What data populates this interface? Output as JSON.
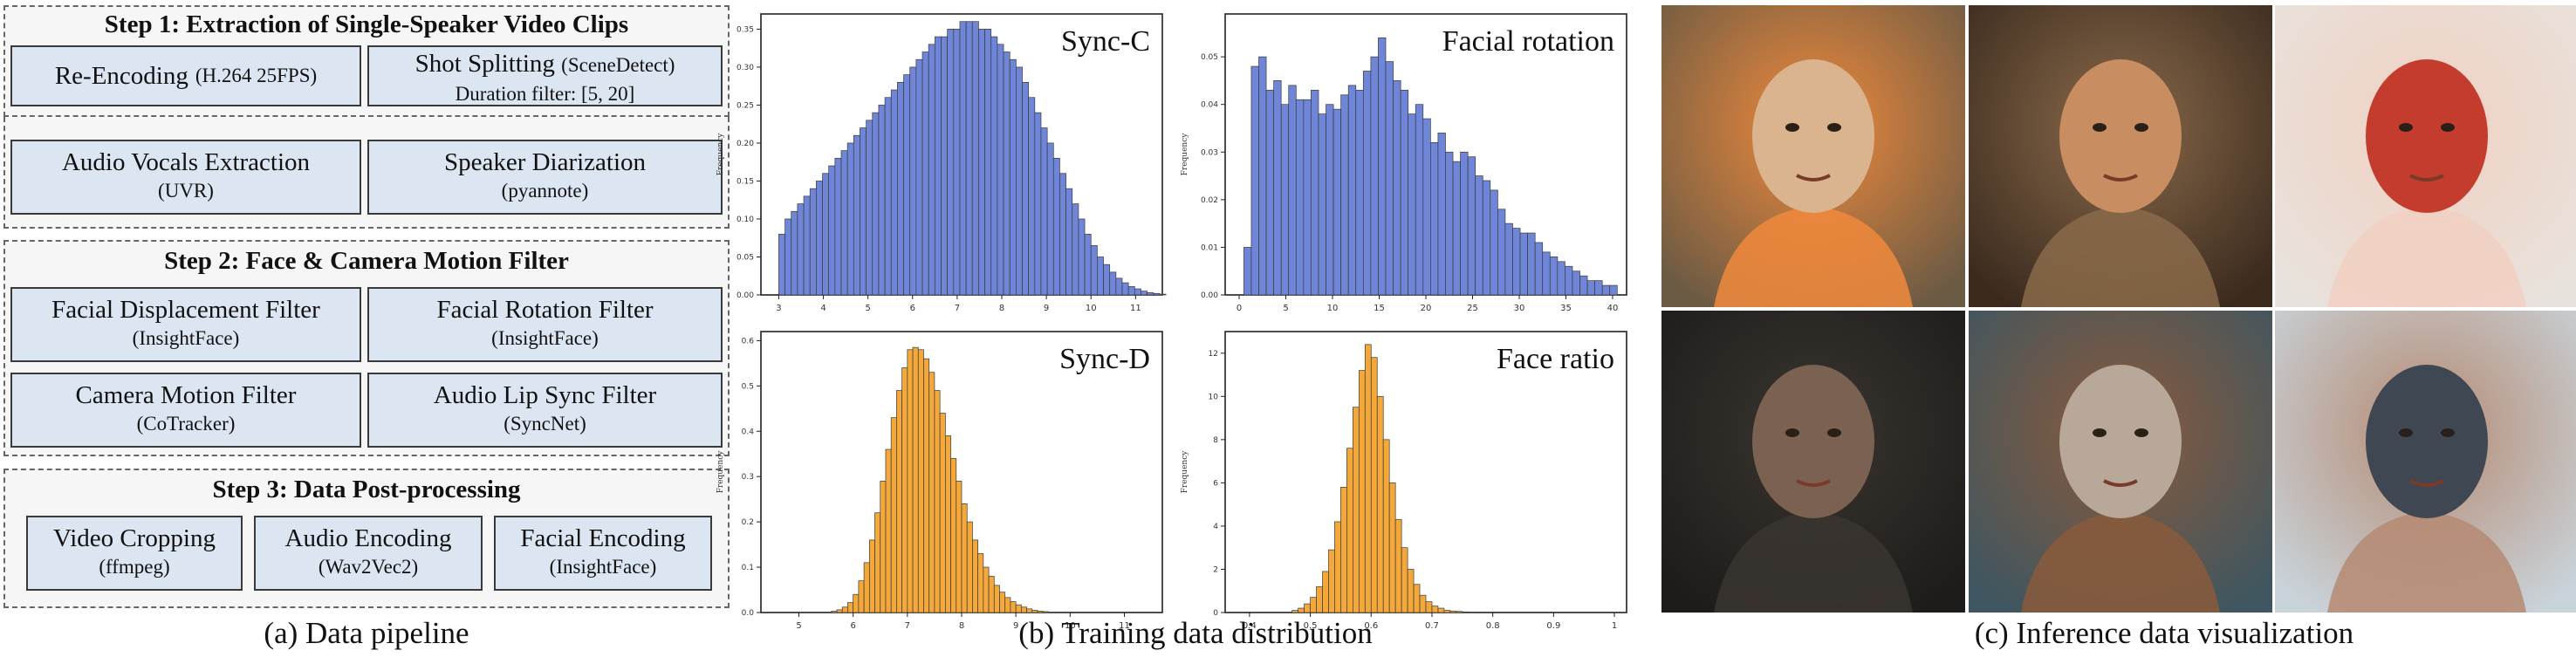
{
  "pipeline": {
    "step1": {
      "title": "Step 1: Extraction of Single-Speaker Video Clips",
      "boxes": [
        {
          "main": "Re-Encoding",
          "sub": "(H.264 25FPS)"
        },
        {
          "main": "Shot Splitting",
          "sub": "(SceneDetect)",
          "extra": "Duration filter: [5, 20]"
        },
        {
          "main": "Audio Vocals Extraction",
          "sub": "(UVR)"
        },
        {
          "main": "Speaker Diarization",
          "sub": "(pyannote)"
        }
      ]
    },
    "step2": {
      "title": "Step 2: Face & Camera Motion Filter",
      "boxes": [
        {
          "main": "Facial Displacement Filter",
          "sub": "(InsightFace)"
        },
        {
          "main": "Facial Rotation Filter",
          "sub": "(InsightFace)"
        },
        {
          "main": "Camera Motion Filter",
          "sub": "(CoTracker)"
        },
        {
          "main": "Audio Lip Sync Filter",
          "sub": "(SyncNet)"
        }
      ]
    },
    "step3": {
      "title": "Step 3: Data Post-processing",
      "boxes": [
        {
          "main": "Video Cropping",
          "sub": "(ffmpeg)"
        },
        {
          "main": "Audio Encoding",
          "sub": "(Wav2Vec2)"
        },
        {
          "main": "Facial Encoding",
          "sub": "(InsightFace)"
        }
      ]
    }
  },
  "captions": {
    "a": "(a) Data pipeline",
    "b": "(b) Training data distribution",
    "c": "(c) Inference data visualization"
  },
  "colors": {
    "blue": "#6f86d8",
    "orange": "#f4a83a",
    "box_fill": "#dbe6f2"
  },
  "photos": [
    {
      "name": "toddler-by-campfire-photo",
      "palette": [
        "#6b5a44",
        "#d9b48f",
        "#f08a3c"
      ]
    },
    {
      "name": "woman-with-parrot-photo",
      "palette": [
        "#3a2a1e",
        "#c98d62",
        "#8a6a4a"
      ]
    },
    {
      "name": "bride-with-headdress-photo",
      "palette": [
        "#e8e2dc",
        "#c33c2e",
        "#f1d0c2"
      ]
    },
    {
      "name": "dark-haired-woman-photo",
      "palette": [
        "#1d1c1a",
        "#7a6152",
        "#3a3530"
      ]
    },
    {
      "name": "old-sailor-in-storm-photo",
      "palette": [
        "#3f5660",
        "#b8a89a",
        "#8a5a3c"
      ]
    },
    {
      "name": "man-in-beanie-photo",
      "palette": [
        "#c9d3da",
        "#3f4852",
        "#b58a72"
      ]
    }
  ],
  "chart_data": [
    {
      "type": "bar",
      "title": "Sync-C",
      "ylabel": "Frequency",
      "color": "#6f86d8",
      "xlim": [
        2.6,
        11.6
      ],
      "ylim": [
        0,
        0.37
      ],
      "xticks": [
        3,
        4,
        5,
        6,
        7,
        8,
        9,
        10,
        11
      ],
      "yticks": [
        0.0,
        0.05,
        0.1,
        0.15,
        0.2,
        0.25,
        0.3,
        0.35
      ],
      "ytick_labels": [
        "0.00",
        "0.05",
        "0.10",
        "0.15",
        "0.20",
        "0.25",
        "0.30",
        "0.35"
      ],
      "bin_width": 0.14,
      "bin_start": 3.0,
      "values": [
        0.08,
        0.1,
        0.11,
        0.12,
        0.13,
        0.14,
        0.15,
        0.16,
        0.17,
        0.18,
        0.19,
        0.2,
        0.21,
        0.22,
        0.23,
        0.24,
        0.25,
        0.26,
        0.27,
        0.28,
        0.29,
        0.3,
        0.31,
        0.32,
        0.33,
        0.34,
        0.34,
        0.35,
        0.35,
        0.36,
        0.36,
        0.36,
        0.35,
        0.35,
        0.34,
        0.33,
        0.32,
        0.31,
        0.3,
        0.28,
        0.26,
        0.24,
        0.22,
        0.2,
        0.18,
        0.16,
        0.14,
        0.12,
        0.1,
        0.08,
        0.065,
        0.05,
        0.04,
        0.03,
        0.022,
        0.016,
        0.011,
        0.008,
        0.005,
        0.003,
        0.002,
        0.001
      ]
    },
    {
      "type": "bar",
      "title": "Facial rotation",
      "ylabel": "Frequency",
      "color": "#6f86d8",
      "xlim": [
        -1.5,
        41.5
      ],
      "ylim": [
        0,
        0.059
      ],
      "xticks": [
        0,
        5,
        10,
        15,
        20,
        25,
        30,
        35,
        40
      ],
      "yticks": [
        0.0,
        0.01,
        0.02,
        0.03,
        0.04,
        0.05
      ],
      "ytick_labels": [
        "0.00",
        "0.01",
        "0.02",
        "0.03",
        "0.04",
        "0.05"
      ],
      "bin_width": 0.8,
      "bin_start": 0.5,
      "values": [
        0.01,
        0.048,
        0.05,
        0.043,
        0.045,
        0.04,
        0.044,
        0.041,
        0.041,
        0.043,
        0.038,
        0.04,
        0.039,
        0.042,
        0.044,
        0.043,
        0.047,
        0.05,
        0.054,
        0.049,
        0.045,
        0.043,
        0.038,
        0.04,
        0.037,
        0.032,
        0.034,
        0.03,
        0.028,
        0.03,
        0.029,
        0.025,
        0.024,
        0.022,
        0.018,
        0.015,
        0.014,
        0.013,
        0.013,
        0.011,
        0.009,
        0.008,
        0.007,
        0.006,
        0.005,
        0.004,
        0.003,
        0.003,
        0.002,
        0.002
      ]
    },
    {
      "type": "bar",
      "title": "Sync-D",
      "ylabel": "Frequency",
      "color": "#f4a83a",
      "xlim": [
        4.3,
        11.7
      ],
      "ylim": [
        0,
        0.62
      ],
      "xticks": [
        5,
        6,
        7,
        8,
        9,
        10,
        11
      ],
      "yticks": [
        0.0,
        0.1,
        0.2,
        0.3,
        0.4,
        0.5,
        0.6
      ],
      "ytick_labels": [
        "0.0",
        "0.1",
        "0.2",
        "0.3",
        "0.4",
        "0.5",
        "0.6"
      ],
      "bin_width": 0.1,
      "bin_start": 5.6,
      "values": [
        0.003,
        0.006,
        0.012,
        0.022,
        0.04,
        0.07,
        0.11,
        0.16,
        0.22,
        0.29,
        0.36,
        0.43,
        0.49,
        0.54,
        0.58,
        0.585,
        0.58,
        0.56,
        0.53,
        0.49,
        0.44,
        0.39,
        0.34,
        0.29,
        0.24,
        0.2,
        0.16,
        0.13,
        0.1,
        0.08,
        0.06,
        0.045,
        0.033,
        0.024,
        0.017,
        0.012,
        0.008,
        0.005,
        0.003,
        0.002
      ]
    },
    {
      "type": "bar",
      "title": "Face ratio",
      "ylabel": "Frequency",
      "color": "#f4a83a",
      "xlim": [
        0.36,
        1.02
      ],
      "ylim": [
        0,
        13.0
      ],
      "xticks": [
        0.4,
        0.5,
        0.6,
        0.7,
        0.8,
        0.9,
        1.0
      ],
      "yticks": [
        0,
        2,
        4,
        6,
        8,
        10,
        12
      ],
      "ytick_labels": [
        "0",
        "2",
        "4",
        "6",
        "8",
        "10",
        "12"
      ],
      "bin_width": 0.01,
      "bin_start": 0.47,
      "values": [
        0.1,
        0.2,
        0.4,
        0.7,
        1.2,
        1.9,
        2.9,
        4.2,
        5.8,
        7.6,
        9.5,
        11.2,
        12.4,
        11.8,
        10.0,
        8.0,
        6.0,
        4.3,
        3.0,
        2.0,
        1.3,
        0.8,
        0.5,
        0.3,
        0.2,
        0.1,
        0.07,
        0.05,
        0.03,
        0.02
      ]
    }
  ]
}
